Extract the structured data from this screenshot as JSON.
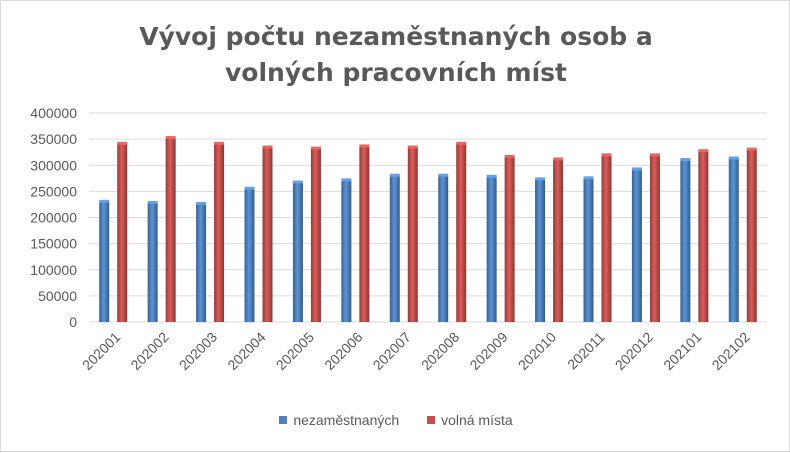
{
  "chart_data": {
    "type": "bar",
    "title": "Vývoj počtu nezaměstnaných osob a volných pracovních míst",
    "categories": [
      "202001",
      "202002",
      "202003",
      "202004",
      "202005",
      "202006",
      "202007",
      "202008",
      "202009",
      "202010",
      "202011",
      "202012",
      "202101",
      "202102"
    ],
    "series": [
      {
        "name": "nezaměstnaných",
        "color": "#4f81bd",
        "values": [
          230000,
          228000,
          226000,
          255000,
          267000,
          271000,
          280000,
          280000,
          278000,
          273000,
          275000,
          292000,
          310000,
          313000
        ]
      },
      {
        "name": "volná místa",
        "color": "#c0504d",
        "values": [
          341000,
          352000,
          341000,
          334000,
          332000,
          336000,
          334000,
          341000,
          316000,
          311000,
          319000,
          319000,
          327000,
          330000
        ]
      }
    ],
    "ylim": [
      0,
      400000
    ],
    "yticks": [
      "0",
      "50000",
      "100000",
      "150000",
      "200000",
      "250000",
      "300000",
      "350000",
      "400000"
    ],
    "grid": true,
    "legend": "bottom"
  }
}
